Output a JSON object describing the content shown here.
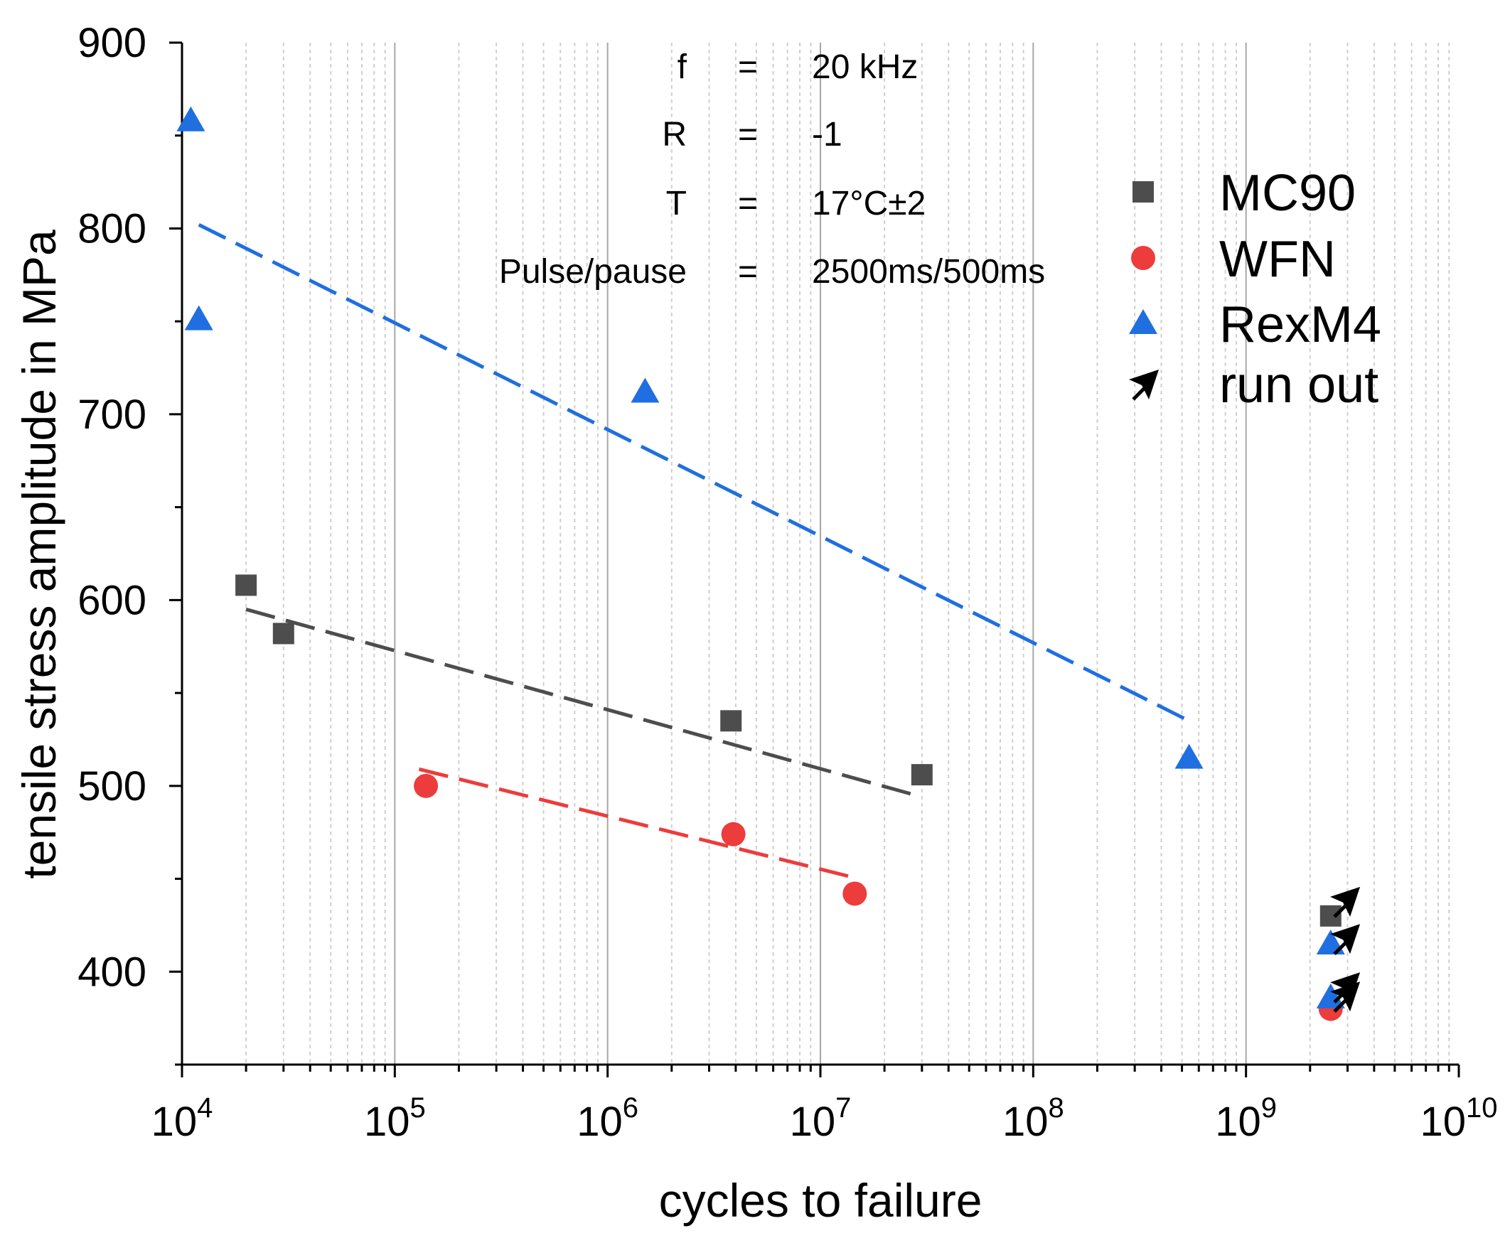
{
  "chart_data": {
    "type": "scatter",
    "x_scale": "log",
    "xlim": [
      10000,
      10000000000
    ],
    "ylim": [
      350,
      900
    ],
    "xlabel": "cycles to failure",
    "ylabel": "tensile stress amplitude in MPa",
    "x_tick_exponents": [
      4,
      5,
      6,
      7,
      8,
      9,
      10
    ],
    "x_tick_base": "10",
    "y_ticks": [
      400,
      500,
      600,
      700,
      800,
      900
    ],
    "grid": {
      "major_x": true,
      "minor_x": true,
      "y": false
    },
    "legend_position": "top-right",
    "parameters": [
      {
        "name": "f",
        "eq": "=",
        "value": "20 kHz"
      },
      {
        "name": "R",
        "eq": "=",
        "value": "-1"
      },
      {
        "name": "T",
        "eq": "=",
        "value": "17°C±2"
      },
      {
        "name": "Pulse/pause",
        "eq": "=",
        "value": "2500ms/500ms"
      }
    ],
    "series": [
      {
        "name": "MC90",
        "marker": "square",
        "color": "#4d4d4d",
        "points": [
          {
            "x": 20000,
            "y": 608
          },
          {
            "x": 30000,
            "y": 582
          },
          {
            "x": 3800000,
            "y": 535
          },
          {
            "x": 30000000,
            "y": 506
          }
        ],
        "fit": {
          "x": [
            20000,
            28000000
          ],
          "y": [
            595,
            495
          ]
        },
        "run_out_points": [
          {
            "x": 2500000000,
            "y": 430
          }
        ]
      },
      {
        "name": "WFN",
        "marker": "circle",
        "color": "#ec3c3c",
        "points": [
          {
            "x": 140000,
            "y": 500
          },
          {
            "x": 3900000,
            "y": 474
          },
          {
            "x": 14500000,
            "y": 442
          }
        ],
        "fit": {
          "x": [
            130000,
            14000000
          ],
          "y": [
            509,
            451
          ]
        },
        "run_out_points": [
          {
            "x": 2500000000,
            "y": 380
          }
        ]
      },
      {
        "name": "RexM4",
        "marker": "triangle",
        "color": "#1f6fe0",
        "points": [
          {
            "x": 11000,
            "y": 858
          },
          {
            "x": 12000,
            "y": 751
          },
          {
            "x": 1500000,
            "y": 712
          },
          {
            "x": 540000000,
            "y": 515
          }
        ],
        "fit": {
          "x": [
            12000,
            540000000
          ],
          "y": [
            802,
            535
          ]
        },
        "run_out_points": [
          {
            "x": 2500000000,
            "y": 415
          },
          {
            "x": 2500000000,
            "y": 386
          }
        ]
      }
    ],
    "run_out": {
      "name": "run out",
      "marker": "arrow",
      "color": "#000000",
      "arrows": [
        {
          "x": 2900000000,
          "y": 438
        },
        {
          "x": 2900000000,
          "y": 418
        },
        {
          "x": 2900000000,
          "y": 392
        },
        {
          "x": 2900000000,
          "y": 387
        }
      ]
    }
  }
}
